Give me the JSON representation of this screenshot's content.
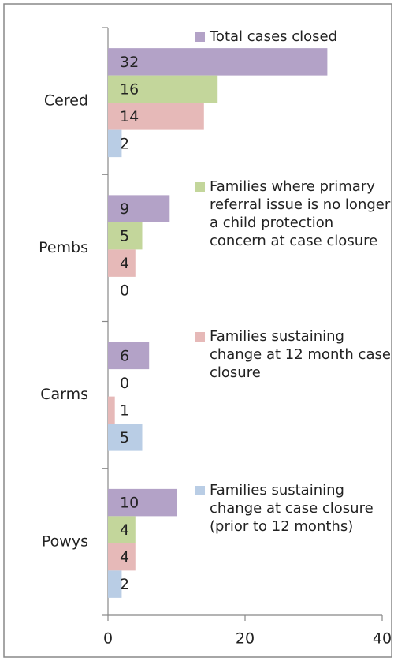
{
  "chart_data": {
    "type": "bar",
    "orientation": "horizontal",
    "categories": [
      "Cered",
      "Pembs",
      "Carms",
      "Powys"
    ],
    "series": [
      {
        "name": "Total cases closed",
        "color": "#b3a2c7",
        "values": [
          32,
          9,
          6,
          10
        ]
      },
      {
        "name": "Families where primary referral issue is no longer a child protection concern at case closure",
        "color": "#c3d69b",
        "values": [
          16,
          5,
          0,
          4
        ]
      },
      {
        "name": "Families sustaining change at 12 month case closure",
        "color": "#e6b9b8",
        "values": [
          14,
          4,
          1,
          4
        ]
      },
      {
        "name": "Families sustaining change at case closure (prior to 12 months)",
        "color": "#b9cde5",
        "values": [
          2,
          0,
          5,
          2
        ]
      }
    ],
    "xlim": [
      0,
      40
    ],
    "xticks": [
      0,
      20,
      40
    ],
    "legend": "right"
  }
}
